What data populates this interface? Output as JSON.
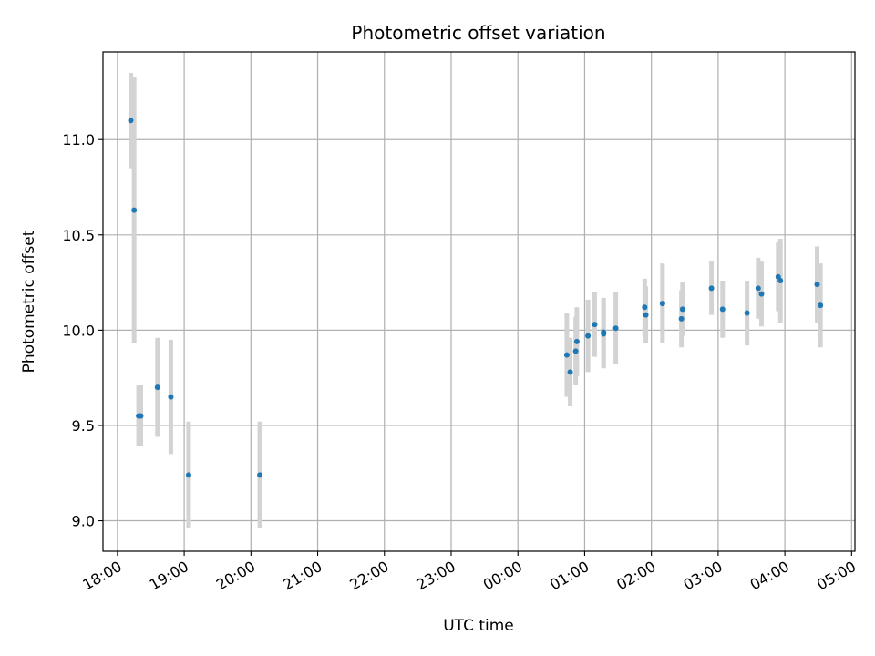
{
  "chart_data": {
    "type": "scatter",
    "title": "Photometric offset variation",
    "xlabel": "UTC time",
    "ylabel": "Photometric offset",
    "grid": true,
    "x_tick_labels": [
      "18:00",
      "19:00",
      "20:00",
      "21:00",
      "22:00",
      "23:00",
      "00:00",
      "01:00",
      "02:00",
      "03:00",
      "04:00",
      "05:00"
    ],
    "y_ticks": [
      9.0,
      9.5,
      10.0,
      10.5,
      11.0
    ],
    "y_tick_labels": [
      "9.0",
      "9.5",
      "10.0",
      "10.5",
      "11.0"
    ],
    "xlim": [
      "17:47",
      "05:03"
    ],
    "ylim": [
      8.84,
      11.46
    ],
    "colors": {
      "point": "#1f77b4",
      "errorbar": "#d3d3d3",
      "grid": "#b0b0b0"
    },
    "points": [
      {
        "x": "18:12",
        "y": 11.1,
        "err": 0.25
      },
      {
        "x": "18:15",
        "y": 10.63,
        "err": 0.7
      },
      {
        "x": "18:19",
        "y": 9.55,
        "err": 0.16
      },
      {
        "x": "18:21",
        "y": 9.55,
        "err": 0.16
      },
      {
        "x": "18:36",
        "y": 9.7,
        "err": 0.26
      },
      {
        "x": "18:48",
        "y": 9.65,
        "err": 0.3
      },
      {
        "x": "19:04",
        "y": 9.24,
        "err": 0.28
      },
      {
        "x": "20:08",
        "y": 9.24,
        "err": 0.28
      },
      {
        "x": "00:44",
        "y": 9.87,
        "err": 0.22
      },
      {
        "x": "00:47",
        "y": 9.78,
        "err": 0.18
      },
      {
        "x": "00:52",
        "y": 9.89,
        "err": 0.18
      },
      {
        "x": "00:53",
        "y": 9.94,
        "err": 0.18
      },
      {
        "x": "01:03",
        "y": 9.97,
        "err": 0.19
      },
      {
        "x": "01:09",
        "y": 10.03,
        "err": 0.17
      },
      {
        "x": "01:17",
        "y": 9.99,
        "err": 0.18
      },
      {
        "x": "01:17",
        "y": 9.98,
        "err": 0.18
      },
      {
        "x": "01:28",
        "y": 10.01,
        "err": 0.19
      },
      {
        "x": "01:54",
        "y": 10.12,
        "err": 0.15
      },
      {
        "x": "01:55",
        "y": 10.08,
        "err": 0.15
      },
      {
        "x": "02:10",
        "y": 10.14,
        "err": 0.21
      },
      {
        "x": "02:28",
        "y": 10.11,
        "err": 0.14
      },
      {
        "x": "02:27",
        "y": 10.06,
        "err": 0.15
      },
      {
        "x": "02:54",
        "y": 10.22,
        "err": 0.14
      },
      {
        "x": "03:04",
        "y": 10.11,
        "err": 0.15
      },
      {
        "x": "03:26",
        "y": 10.09,
        "err": 0.17
      },
      {
        "x": "03:36",
        "y": 10.22,
        "err": 0.16
      },
      {
        "x": "03:39",
        "y": 10.19,
        "err": 0.17
      },
      {
        "x": "03:54",
        "y": 10.28,
        "err": 0.18
      },
      {
        "x": "03:56",
        "y": 10.26,
        "err": 0.22
      },
      {
        "x": "04:29",
        "y": 10.24,
        "err": 0.2
      },
      {
        "x": "04:32",
        "y": 10.13,
        "err": 0.22
      }
    ]
  }
}
